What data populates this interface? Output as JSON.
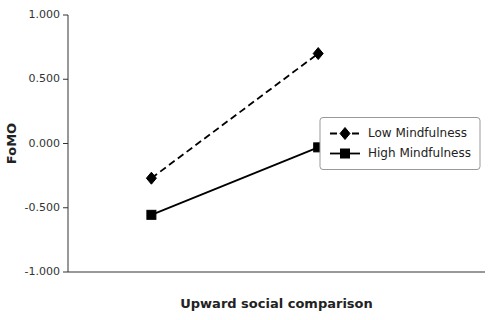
{
  "chart_data": {
    "type": "line",
    "x": [
      1,
      2
    ],
    "series": [
      {
        "name": "Low Mindfulness",
        "color": "#000000",
        "line_style": "dashed",
        "marker": "diamond",
        "values": [
          -0.27,
          0.7
        ]
      },
      {
        "name": "High Mindfulness",
        "color": "#000000",
        "line_style": "solid",
        "marker": "square",
        "values": [
          -0.555,
          -0.03
        ]
      }
    ],
    "xlabel": "Upward social comparison",
    "ylabel": "FoMO",
    "xlim": [
      0.5,
      3.0
    ],
    "xticks": [],
    "ylim": [
      -1.0,
      1.0
    ],
    "yticks": [
      {
        "value": -1.0,
        "label": "-1.000"
      },
      {
        "value": -0.5,
        "label": "-0.500"
      },
      {
        "value": 0.0,
        "label": "0.000"
      },
      {
        "value": 0.5,
        "label": "0.500"
      },
      {
        "value": 1.0,
        "label": "1.000"
      }
    ],
    "legend": "right",
    "tick_labels": "y",
    "grid": false
  }
}
